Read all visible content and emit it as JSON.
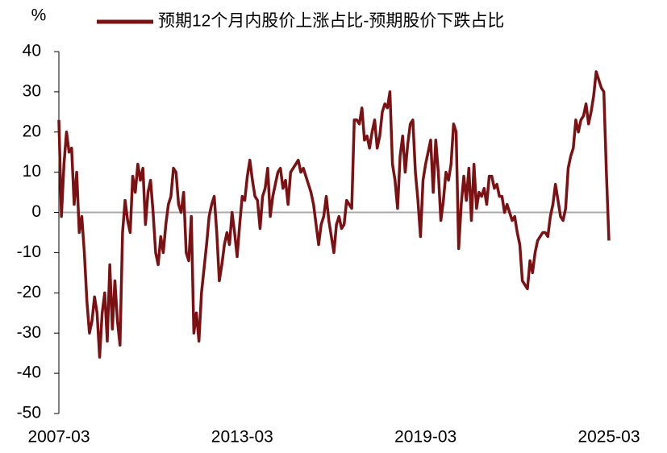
{
  "chart_data": {
    "type": "line",
    "y_label": "%",
    "categories": [
      "2007-03",
      null,
      null,
      null,
      null,
      null,
      null,
      null,
      null,
      null,
      null,
      null,
      null,
      null,
      null,
      null,
      null,
      null,
      null,
      null,
      null,
      null,
      null,
      null,
      null,
      null,
      null,
      null,
      null,
      null,
      null,
      null,
      null,
      null,
      null,
      null,
      null,
      null,
      null,
      null,
      null,
      null,
      null,
      null,
      null,
      null,
      null,
      null,
      null,
      null,
      null,
      null,
      null,
      null,
      null,
      null,
      null,
      null,
      null,
      null,
      null,
      null,
      null,
      null,
      null,
      null,
      null,
      null,
      null,
      null,
      null,
      null,
      "2013-03",
      null,
      null,
      null,
      null,
      null,
      null,
      null,
      null,
      null,
      null,
      null,
      null,
      null,
      null,
      null,
      null,
      null,
      null,
      null,
      null,
      null,
      null,
      null,
      null,
      null,
      null,
      null,
      null,
      null,
      null,
      null,
      null,
      null,
      null,
      null,
      null,
      null,
      null,
      null,
      null,
      null,
      null,
      null,
      null,
      null,
      null,
      null,
      null,
      null,
      null,
      null,
      null,
      null,
      null,
      null,
      null,
      null,
      null,
      null,
      null,
      null,
      null,
      null,
      null,
      null,
      null,
      null,
      null,
      null,
      null,
      null,
      "2019-03",
      null,
      null,
      null,
      null,
      null,
      null,
      null,
      null,
      null,
      null,
      null,
      null,
      null,
      null,
      null,
      null,
      null,
      null,
      null,
      null,
      null,
      null,
      null,
      null,
      null,
      null,
      null,
      null,
      null,
      null,
      null,
      null,
      null,
      null,
      null,
      null,
      null,
      null,
      null,
      null,
      null,
      null,
      null,
      null,
      null,
      null,
      null,
      null,
      null,
      null,
      null,
      null,
      null,
      null,
      null,
      null,
      null,
      null,
      null,
      null,
      null,
      null,
      null,
      null,
      null,
      null,
      null,
      null,
      null,
      null,
      null,
      "2025-03"
    ],
    "series": [
      {
        "name": "预期12个月内股价上涨占比-预期股价下跌占比",
        "color": "#7b1113",
        "values": [
          23,
          -1,
          12,
          20,
          15,
          16,
          2,
          10,
          -5,
          -1,
          -10,
          -22,
          -30,
          -27,
          -21,
          -25,
          -36,
          -25,
          -20,
          -32,
          -13,
          -29,
          -17,
          -27,
          -33,
          -5,
          3,
          -2,
          -5,
          9,
          5,
          12,
          8,
          11,
          -3,
          5,
          8,
          0,
          -10,
          -13,
          -6,
          -10,
          -3,
          2,
          4,
          11,
          10,
          2,
          0,
          5,
          -10,
          -12,
          -1,
          -30,
          -25,
          -32,
          -20,
          -14,
          -8,
          -1,
          2,
          4,
          -5,
          -17,
          -13,
          -8,
          -5,
          -8,
          0,
          -5,
          -11,
          -3,
          4,
          3,
          9,
          13,
          8,
          4,
          3,
          -4,
          4,
          6,
          11,
          -1,
          4,
          7,
          10,
          11,
          6,
          8,
          2,
          10,
          11,
          12,
          13,
          10,
          11,
          9,
          7,
          5,
          2,
          -3,
          -8,
          -3,
          -1,
          4,
          -2,
          -6,
          -10,
          -3,
          -1,
          -4,
          -3,
          3,
          2,
          1,
          23,
          23,
          22,
          26,
          18,
          19,
          16,
          20,
          23,
          16,
          19,
          25,
          27,
          26,
          30,
          12,
          8,
          1,
          14,
          19,
          10,
          17,
          22,
          23,
          10,
          3,
          -6,
          8,
          12,
          15,
          18,
          5,
          18,
          10,
          -2,
          3,
          10,
          8,
          12,
          22,
          20,
          -9,
          2,
          9,
          3,
          11,
          -2,
          12,
          1,
          5,
          4,
          6,
          2,
          9,
          9,
          6,
          7,
          4,
          4,
          0,
          2,
          0,
          -2,
          -1,
          -5,
          -8,
          -17,
          -18,
          -19,
          -12,
          -15,
          -10,
          -7,
          -6,
          -5,
          -5,
          -6,
          -1,
          2,
          7,
          3,
          -1,
          -2,
          1,
          11,
          14,
          16,
          23,
          20,
          23,
          24,
          27,
          22,
          25,
          29,
          35,
          33,
          31,
          30,
          10,
          -7
        ]
      }
    ],
    "ylim": [
      -50,
      40
    ],
    "yticks": [
      -50,
      -40,
      -30,
      -20,
      -10,
      0,
      10,
      20,
      30,
      40
    ],
    "grid": false,
    "legend": "top"
  }
}
